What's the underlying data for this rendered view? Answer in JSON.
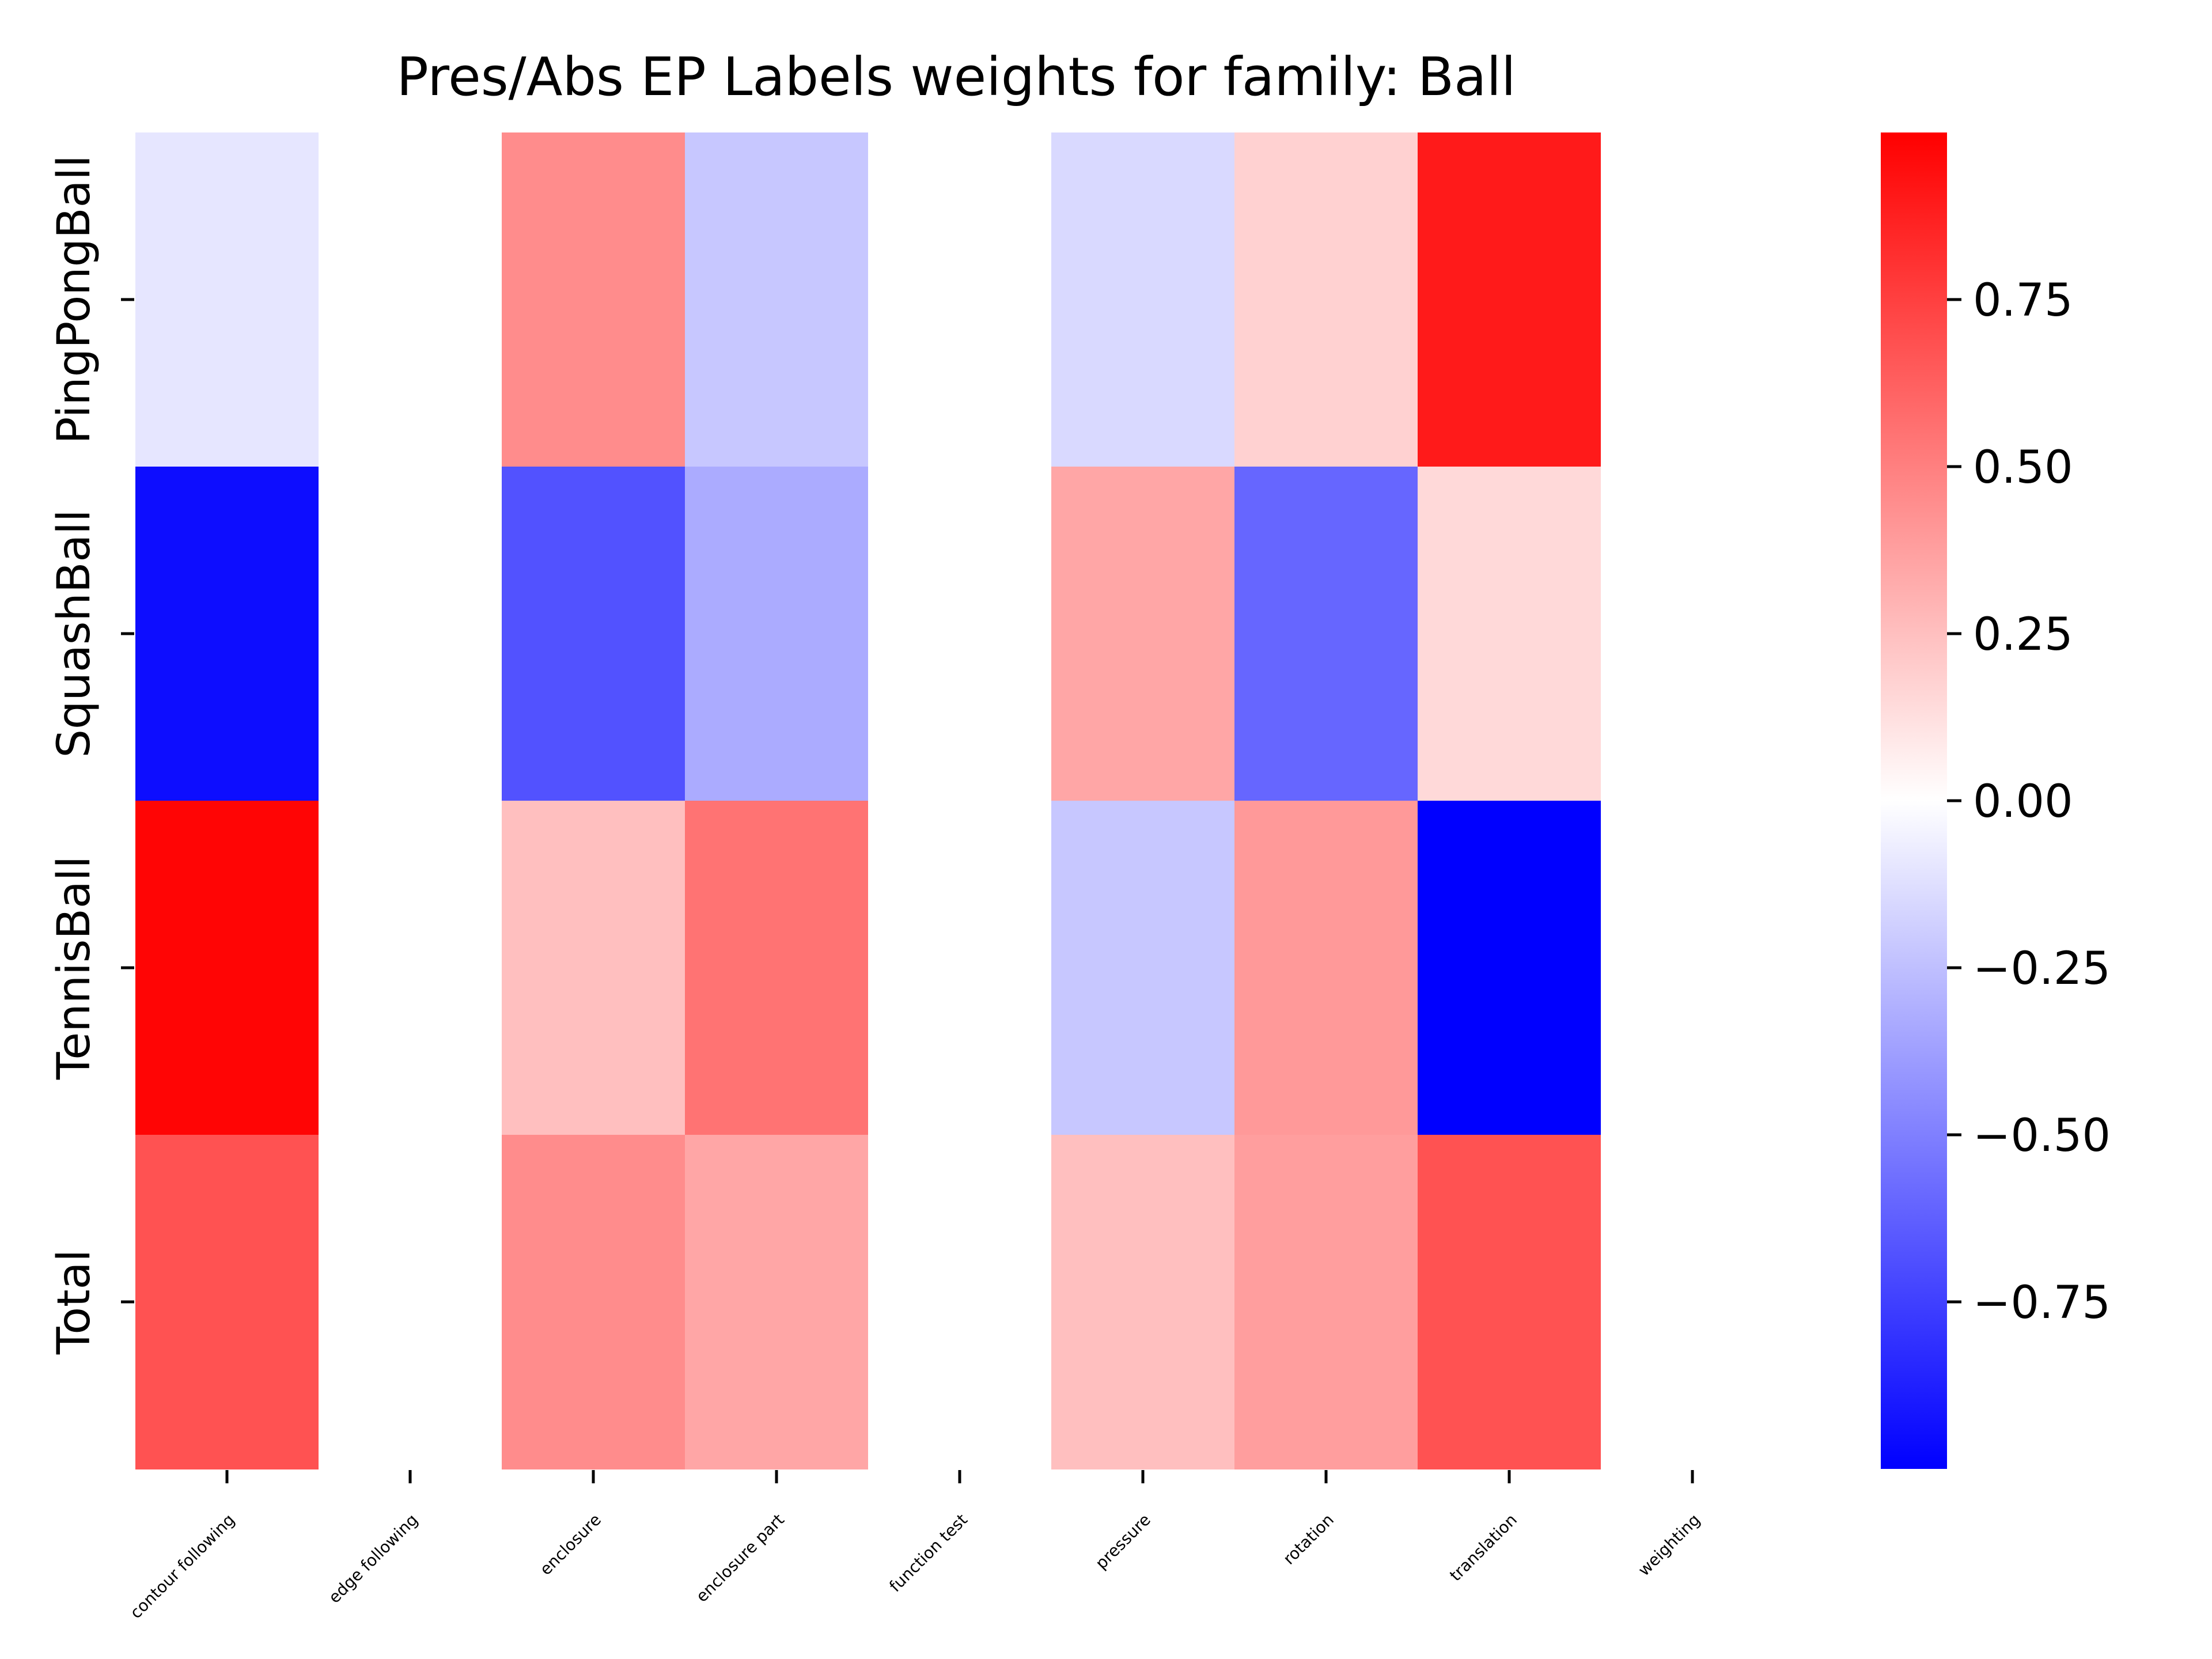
{
  "chart_data": {
    "type": "heatmap",
    "title": "Pres/Abs EP Labels weights for family: Ball",
    "xlabel": "",
    "ylabel": "",
    "x_categories": [
      "contour following",
      "edge following",
      "enclosure",
      "enclosure part",
      "function test",
      "pressure",
      "rotation",
      "translation",
      "weighting"
    ],
    "y_categories": [
      "PingPongBall",
      "SquashBall",
      "TennisBall",
      "Total"
    ],
    "values": [
      [
        -0.1,
        0.0,
        0.45,
        -0.22,
        0.0,
        -0.15,
        0.18,
        0.9,
        0.0
      ],
      [
        -0.95,
        0.0,
        -0.68,
        -0.33,
        0.0,
        0.35,
        -0.6,
        0.15,
        0.0
      ],
      [
        0.98,
        0.0,
        0.25,
        0.55,
        0.0,
        -0.22,
        0.4,
        -1.0,
        0.0
      ],
      [
        0.68,
        0.0,
        0.45,
        0.35,
        0.0,
        0.25,
        0.38,
        0.68,
        0.0
      ]
    ],
    "colormap": {
      "low": "#0000ff",
      "mid": "#ffffff",
      "high": "#ff0000"
    },
    "vmin": -1.0,
    "vmax": 1.0,
    "colorbar_ticks": [
      {
        "value": 0.75,
        "label": "0.75"
      },
      {
        "value": 0.5,
        "label": "0.50"
      },
      {
        "value": 0.25,
        "label": "0.25"
      },
      {
        "value": 0.0,
        "label": "0.00"
      },
      {
        "value": -0.25,
        "label": "−0.25"
      },
      {
        "value": -0.5,
        "label": "−0.50"
      },
      {
        "value": -0.75,
        "label": "−0.75"
      }
    ],
    "grid": false
  }
}
